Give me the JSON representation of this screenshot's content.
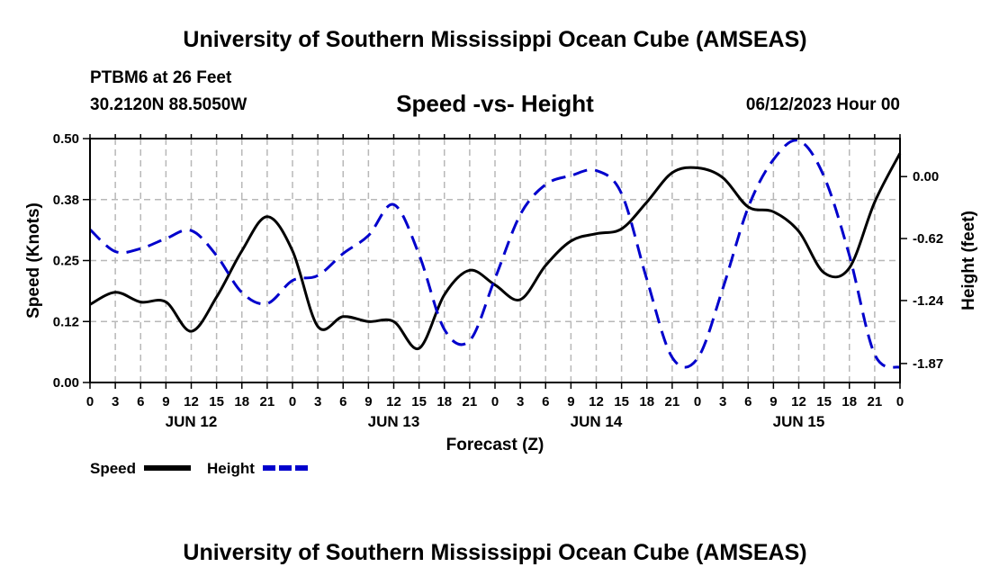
{
  "header": {
    "title": "University of Southern Mississippi Ocean Cube (AMSEAS)",
    "station": "PTBM6 at 26 Feet",
    "coords": "30.2120N  88.5050W",
    "subtitle": "Speed -vs- Height",
    "datetime": "06/12/2023 Hour 00"
  },
  "footer": {
    "title": "University of Southern Mississippi Ocean Cube (AMSEAS)"
  },
  "chart_data": {
    "type": "line",
    "title": "Speed -vs- Height",
    "xlabel": "Forecast (Z)",
    "ylabel": "Speed (Knots)",
    "y2label": "Height (feet)",
    "x_range": [
      0,
      96
    ],
    "ylim": [
      0,
      0.5
    ],
    "y2lim": [
      -2.06,
      0.38
    ],
    "x_tick_step_hours": 3,
    "x_tick_labels": [
      "0",
      "3",
      "6",
      "9",
      "12",
      "15",
      "18",
      "21",
      "0",
      "3",
      "6",
      "9",
      "12",
      "15",
      "18",
      "21",
      "0",
      "3",
      "6",
      "9",
      "12",
      "15",
      "18",
      "21",
      "0",
      "3",
      "6",
      "9",
      "12",
      "15",
      "18",
      "21",
      "0"
    ],
    "day_labels": [
      {
        "hour": 12,
        "label": "JUN 12"
      },
      {
        "hour": 36,
        "label": "JUN 13"
      },
      {
        "hour": 60,
        "label": "JUN 14"
      },
      {
        "hour": 84,
        "label": "JUN 15"
      }
    ],
    "y_ticks": [
      {
        "value": 0.0,
        "label": "0.00"
      },
      {
        "value": 0.125,
        "label": "0.12"
      },
      {
        "value": 0.25,
        "label": "0.25"
      },
      {
        "value": 0.375,
        "label": "0.38"
      },
      {
        "value": 0.5,
        "label": "0.50"
      }
    ],
    "y2_ticks": [
      {
        "value": 0.0,
        "label": "0.00"
      },
      {
        "value": -0.62,
        "label": "-0.62"
      },
      {
        "value": -1.24,
        "label": "-1.24"
      },
      {
        "value": -1.87,
        "label": "-1.87"
      }
    ],
    "grid": true,
    "legend": [
      {
        "name": "Speed",
        "color": "#000000",
        "dash": "solid"
      },
      {
        "name": "Height",
        "color": "#0000cc",
        "dash": "dashed"
      }
    ],
    "series": [
      {
        "name": "Speed",
        "axis": "left",
        "color": "#000000",
        "x": [
          0,
          3,
          6,
          9,
          12,
          15,
          18,
          21,
          24,
          27,
          30,
          33,
          36,
          39,
          42,
          45,
          48,
          51,
          54,
          57,
          60,
          63,
          66,
          69,
          72,
          75,
          78,
          81,
          84,
          87,
          90,
          93,
          96
        ],
        "values": [
          0.16,
          0.185,
          0.165,
          0.165,
          0.105,
          0.175,
          0.27,
          0.34,
          0.27,
          0.115,
          0.135,
          0.125,
          0.125,
          0.07,
          0.18,
          0.23,
          0.2,
          0.17,
          0.24,
          0.29,
          0.305,
          0.315,
          0.37,
          0.43,
          0.44,
          0.42,
          0.36,
          0.35,
          0.31,
          0.225,
          0.235,
          0.37,
          0.47
        ]
      },
      {
        "name": "Height",
        "axis": "right",
        "color": "#0000cc",
        "x": [
          0,
          3,
          6,
          9,
          12,
          15,
          18,
          21,
          24,
          27,
          30,
          33,
          36,
          39,
          42,
          45,
          48,
          51,
          54,
          57,
          60,
          63,
          66,
          69,
          72,
          75,
          78,
          81,
          84,
          87,
          90,
          93,
          96
        ],
        "values": [
          -0.53,
          -0.75,
          -0.72,
          -0.62,
          -0.54,
          -0.79,
          -1.16,
          -1.27,
          -1.04,
          -0.99,
          -0.77,
          -0.59,
          -0.28,
          -0.78,
          -1.53,
          -1.64,
          -1.02,
          -0.38,
          -0.08,
          0.01,
          0.06,
          -0.17,
          -1.03,
          -1.81,
          -1.82,
          -1.12,
          -0.31,
          0.17,
          0.36,
          0.0,
          -0.79,
          -1.78,
          -1.91
        ]
      }
    ]
  }
}
